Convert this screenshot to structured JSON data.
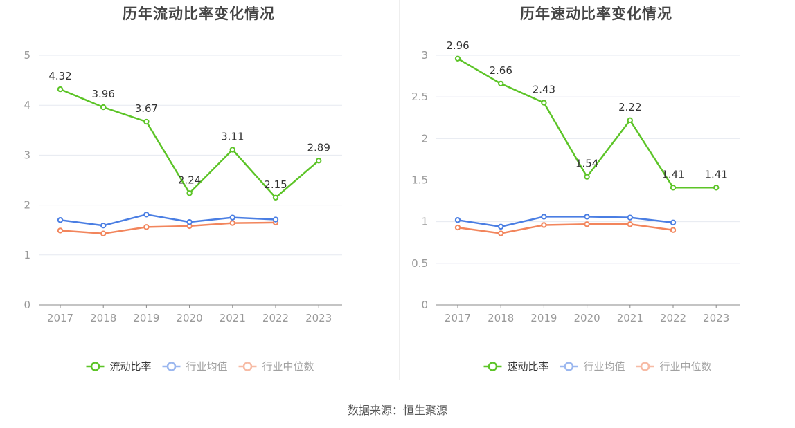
{
  "source_text": "数据来源：恒生聚源",
  "chart_data": [
    {
      "type": "line",
      "title": "历年流动比率变化情况",
      "categories": [
        "2017",
        "2018",
        "2019",
        "2020",
        "2021",
        "2022",
        "2023"
      ],
      "y_ticks": [
        "0",
        "1",
        "2",
        "3",
        "4",
        "5"
      ],
      "ylim": [
        0,
        5
      ],
      "grid": true,
      "legend_position": "bottom",
      "series": [
        {
          "name": "流动比率",
          "color": "#5cc427",
          "labels": true,
          "values": [
            4.32,
            3.96,
            3.67,
            2.24,
            3.11,
            2.15,
            2.89
          ],
          "value_labels": [
            "4.32",
            "3.96",
            "3.67",
            "2.24",
            "3.11",
            "2.15",
            "2.89"
          ]
        },
        {
          "name": "行业均值",
          "color": "#4a7ee3",
          "labels": false,
          "values": [
            1.7,
            1.59,
            1.81,
            1.66,
            1.75,
            1.71,
            null
          ]
        },
        {
          "name": "行业中位数",
          "color": "#f2855c",
          "labels": false,
          "values": [
            1.49,
            1.43,
            1.56,
            1.58,
            1.64,
            1.65,
            null
          ]
        }
      ]
    },
    {
      "type": "line",
      "title": "历年速动比率变化情况",
      "categories": [
        "2017",
        "2018",
        "2019",
        "2020",
        "2021",
        "2022",
        "2023"
      ],
      "y_ticks": [
        "0",
        "0.5",
        "1",
        "1.5",
        "2",
        "2.5",
        "3"
      ],
      "ylim": [
        0,
        3
      ],
      "grid": true,
      "legend_position": "bottom",
      "series": [
        {
          "name": "速动比率",
          "color": "#5cc427",
          "labels": true,
          "values": [
            2.96,
            2.66,
            2.43,
            1.54,
            2.22,
            1.41,
            1.41
          ],
          "value_labels": [
            "2.96",
            "2.66",
            "2.43",
            "1.54",
            "2.22",
            "1.41",
            "1.41"
          ]
        },
        {
          "name": "行业均值",
          "color": "#4a7ee3",
          "labels": false,
          "values": [
            1.02,
            0.94,
            1.06,
            1.06,
            1.05,
            0.99,
            null
          ]
        },
        {
          "name": "行业中位数",
          "color": "#f2855c",
          "labels": false,
          "values": [
            0.93,
            0.86,
            0.96,
            0.97,
            0.97,
            0.9,
            null
          ]
        }
      ]
    }
  ]
}
